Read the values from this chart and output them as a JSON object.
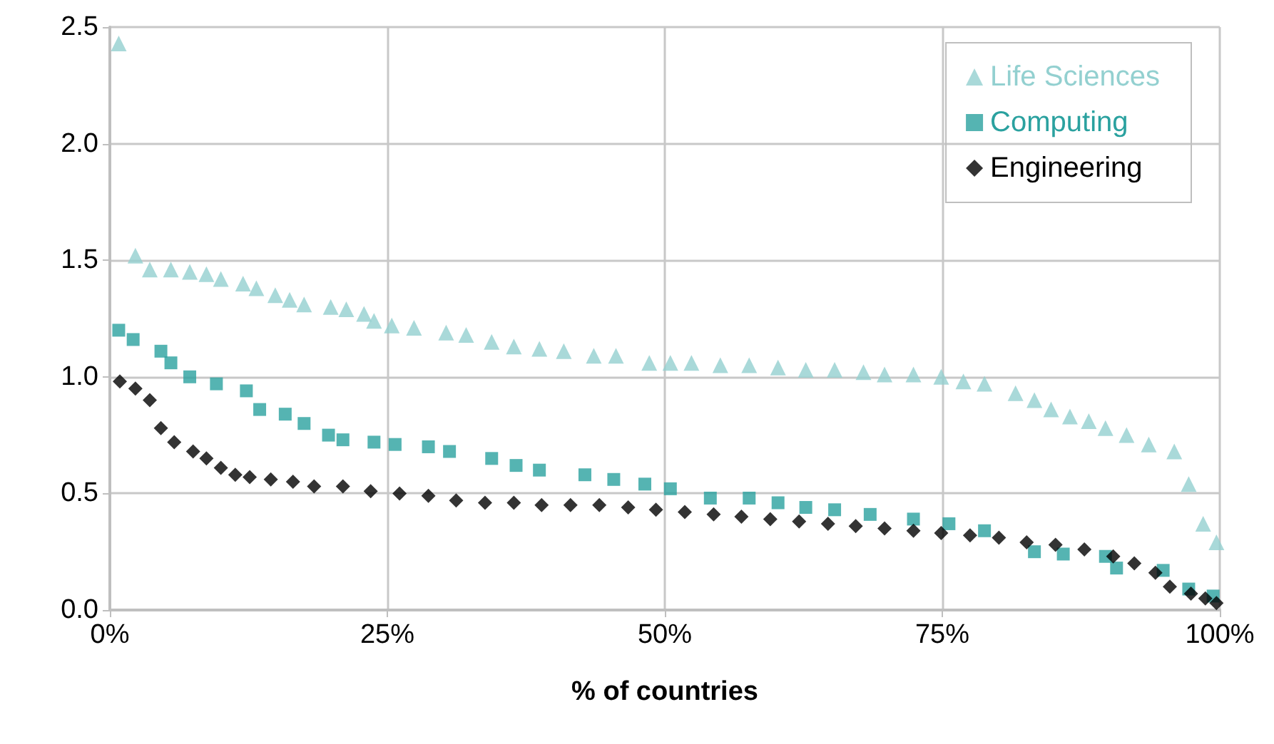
{
  "chart_data": {
    "type": "scatter",
    "xlabel": "% of countries",
    "xlim": [
      0,
      100
    ],
    "ylim": [
      0,
      2.5
    ],
    "xticks": [
      {
        "value": 0,
        "label": "0%"
      },
      {
        "value": 25,
        "label": "25%"
      },
      {
        "value": 50,
        "label": "50%"
      },
      {
        "value": 75,
        "label": "75%"
      },
      {
        "value": 100,
        "label": "100%"
      }
    ],
    "yticks": [
      {
        "value": 0,
        "label": "0.0"
      },
      0.5,
      {
        "value": 1,
        "label": "1.0"
      },
      1.5,
      {
        "value": 2,
        "label": "2.0"
      },
      2.5
    ],
    "grid": true,
    "legend": "top right",
    "series": [
      {
        "name": "Life Sciences",
        "color": "#93d0d0",
        "marker": "triangle",
        "x": [
          0.8,
          2.3,
          3.6,
          5.5,
          7.2,
          8.7,
          10,
          12,
          13.2,
          14.9,
          16.2,
          17.5,
          19.9,
          21.3,
          22.9,
          23.8,
          25.4,
          27.4,
          30.3,
          32.1,
          34.4,
          36.4,
          38.7,
          40.9,
          43.6,
          45.6,
          48.6,
          50.5,
          52.4,
          55,
          57.6,
          60.2,
          62.7,
          65.3,
          67.9,
          69.8,
          72.4,
          74.9,
          76.9,
          78.8,
          81.6,
          83.3,
          84.8,
          86.5,
          88.2,
          89.7,
          91.6,
          93.6,
          95.9,
          97.2,
          98.5,
          99.7
        ],
        "values": [
          2.43,
          1.52,
          1.46,
          1.46,
          1.45,
          1.44,
          1.42,
          1.4,
          1.38,
          1.35,
          1.33,
          1.31,
          1.3,
          1.29,
          1.27,
          1.24,
          1.22,
          1.21,
          1.19,
          1.18,
          1.15,
          1.13,
          1.12,
          1.11,
          1.09,
          1.09,
          1.06,
          1.06,
          1.06,
          1.05,
          1.05,
          1.04,
          1.03,
          1.03,
          1.02,
          1.01,
          1.01,
          1,
          0.98,
          0.97,
          0.93,
          0.9,
          0.86,
          0.83,
          0.81,
          0.78,
          0.75,
          0.71,
          0.68,
          0.54,
          0.37,
          0.29
        ]
      },
      {
        "name": "Computing",
        "color": "#2aa19f",
        "marker": "square",
        "x": [
          0.8,
          2.1,
          4.6,
          5.5,
          7.2,
          9.6,
          12.3,
          13.5,
          15.8,
          17.5,
          19.7,
          21,
          23.8,
          25.7,
          28.7,
          30.6,
          34.4,
          36.6,
          38.7,
          42.8,
          45.4,
          48.2,
          50.5,
          54.1,
          57.6,
          60.2,
          62.7,
          65.3,
          68.5,
          72.4,
          75.6,
          78.8,
          83.3,
          85.9,
          89.7,
          90.7,
          94.9,
          97.2,
          99.4
        ],
        "values": [
          1.2,
          1.16,
          1.11,
          1.06,
          1,
          0.97,
          0.94,
          0.86,
          0.84,
          0.8,
          0.75,
          0.73,
          0.72,
          0.71,
          0.7,
          0.68,
          0.65,
          0.62,
          0.6,
          0.58,
          0.56,
          0.54,
          0.52,
          0.48,
          0.48,
          0.46,
          0.44,
          0.43,
          0.41,
          0.39,
          0.37,
          0.34,
          0.25,
          0.24,
          0.23,
          0.18,
          0.17,
          0.09,
          0.06
        ]
      },
      {
        "name": "Engineering",
        "color": "#000000",
        "marker": "diamond",
        "x": [
          0.9,
          2.3,
          3.6,
          4.6,
          5.8,
          7.5,
          8.7,
          10,
          11.3,
          12.6,
          14.5,
          16.5,
          18.4,
          21,
          23.5,
          26.1,
          28.7,
          31.2,
          33.8,
          36.4,
          38.9,
          41.5,
          44.1,
          46.7,
          49.2,
          51.8,
          54.4,
          56.9,
          59.5,
          62.1,
          64.7,
          67.2,
          69.8,
          72.4,
          74.9,
          77.5,
          80.1,
          82.6,
          85.2,
          87.8,
          90.4,
          92.3,
          94.2,
          95.5,
          97.4,
          98.7,
          99.7
        ],
        "values": [
          0.98,
          0.95,
          0.9,
          0.78,
          0.72,
          0.68,
          0.65,
          0.61,
          0.58,
          0.57,
          0.56,
          0.55,
          0.53,
          0.53,
          0.51,
          0.5,
          0.49,
          0.47,
          0.46,
          0.46,
          0.45,
          0.45,
          0.45,
          0.44,
          0.43,
          0.42,
          0.41,
          0.4,
          0.39,
          0.38,
          0.37,
          0.36,
          0.35,
          0.34,
          0.33,
          0.32,
          0.31,
          0.29,
          0.28,
          0.26,
          0.23,
          0.2,
          0.16,
          0.1,
          0.07,
          0.05,
          0.03
        ]
      }
    ]
  }
}
